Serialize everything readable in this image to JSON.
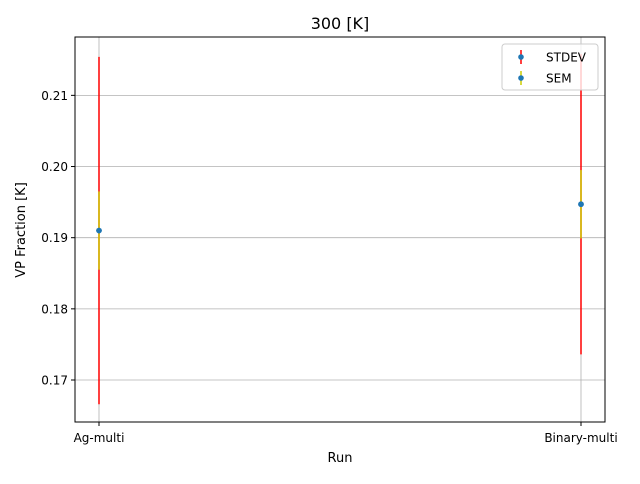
{
  "chart_data": {
    "type": "scatter",
    "title": "300 [K]",
    "xlabel": "Run",
    "ylabel": "VP Fraction [K]",
    "categories": [
      "Ag-multi",
      "Binary-multi"
    ],
    "ylim": [
      0.1641,
      0.2182
    ],
    "yticks": [
      0.17,
      0.18,
      0.19,
      0.2,
      0.21
    ],
    "ytick_labels": [
      "0.17",
      "0.18",
      "0.19",
      "0.20",
      "0.21"
    ],
    "grid": true,
    "legend_position": "top-right",
    "series": [
      {
        "name": "STDEV",
        "color": "#ff0000",
        "marker_color": "#1f77b4",
        "values": [
          0.191,
          0.1947
        ],
        "error": [
          0.0244,
          0.0211
        ]
      },
      {
        "name": "SEM",
        "color": "#cccc00",
        "marker_color": "#1f77b4",
        "values": [
          0.191,
          0.1947
        ],
        "error": [
          0.0055,
          0.0048
        ]
      }
    ]
  }
}
